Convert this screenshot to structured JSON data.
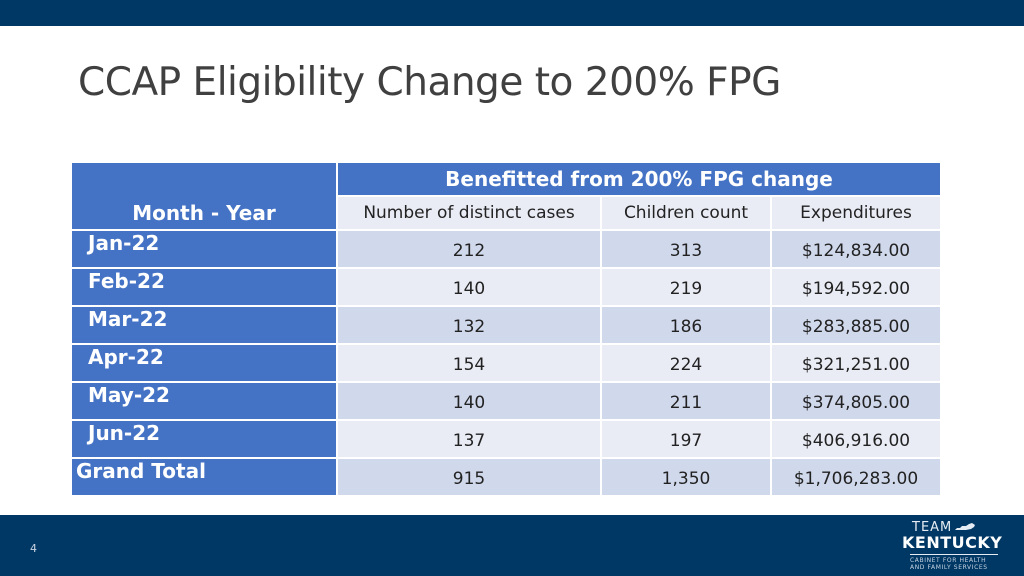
{
  "slide": {
    "title": "CCAP Eligibility Change to 200% FPG",
    "page_number": "4"
  },
  "table": {
    "row_header_label": "Month - Year",
    "group_header": "Benefitted from 200% FPG change",
    "columns": [
      "Number of distinct cases",
      "Children count",
      "Expenditures"
    ],
    "rows": [
      {
        "month": "Jan-22",
        "cases": "212",
        "children": "313",
        "expenditures": "$124,834.00"
      },
      {
        "month": "Feb-22",
        "cases": "140",
        "children": "219",
        "expenditures": "$194,592.00"
      },
      {
        "month": "Mar-22",
        "cases": "132",
        "children": "186",
        "expenditures": "$283,885.00"
      },
      {
        "month": "Apr-22",
        "cases": "154",
        "children": "224",
        "expenditures": "$321,251.00"
      },
      {
        "month": "May-22",
        "cases": "140",
        "children": "211",
        "expenditures": "$374,805.00"
      },
      {
        "month": "Jun-22",
        "cases": "137",
        "children": "197",
        "expenditures": "$406,916.00"
      }
    ],
    "total": {
      "label": "Grand Total",
      "cases": "915",
      "children": "1,350",
      "expenditures": "$1,706,283.00"
    }
  },
  "logo": {
    "line1": "TEAM",
    "line2": "KENTUCKY",
    "line3a": "CABINET FOR HEALTH",
    "line3b": "AND FAMILY SERVICES",
    "icon": "kentucky-state-icon"
  },
  "colors": {
    "dark_navy": "#003865",
    "header_blue": "#4472c4",
    "row_light": "#e9ecf5",
    "row_medium": "#d0d8ec",
    "title_gray": "#404040"
  }
}
